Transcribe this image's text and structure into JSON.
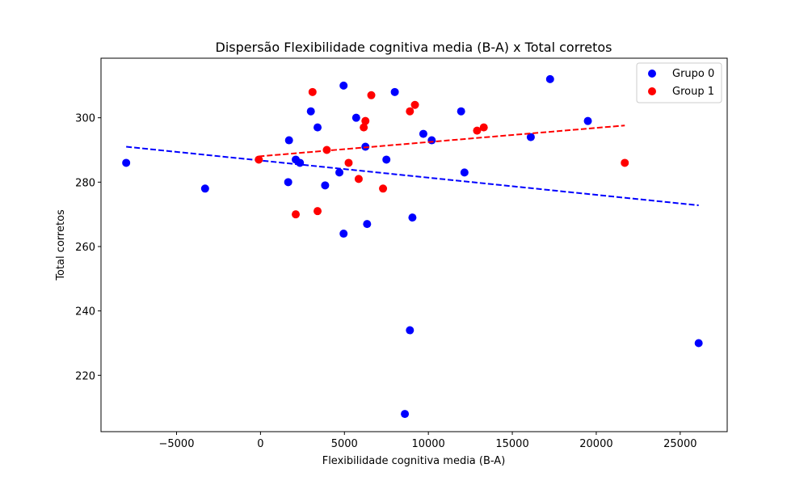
{
  "chart_data": {
    "type": "scatter",
    "title": "Dispersão Flexibilidade cognitiva media (B-A) x Total corretos",
    "xlabel": "Flexibilidade cognitiva media (B-A)",
    "ylabel": "Total corretos",
    "xlim": [
      -9500,
      27800
    ],
    "ylim": [
      202.5,
      318.5
    ],
    "xticks": [
      -5000,
      0,
      5000,
      10000,
      15000,
      20000,
      25000
    ],
    "xtick_labels": [
      "−5000",
      "0",
      "5000",
      "10000",
      "15000",
      "20000",
      "25000"
    ],
    "yticks": [
      220,
      240,
      260,
      280,
      300
    ],
    "ytick_labels": [
      "220",
      "240",
      "260",
      "280",
      "300"
    ],
    "grid": false,
    "legend_position": "top-right",
    "series": [
      {
        "name": "Grupo 0",
        "color": "#0000ff",
        "points": [
          [
            -8000,
            286
          ],
          [
            -3300,
            278
          ],
          [
            1700,
            293
          ],
          [
            1650,
            280
          ],
          [
            2100,
            287
          ],
          [
            2350,
            286
          ],
          [
            3000,
            302
          ],
          [
            3400,
            297
          ],
          [
            3850,
            279
          ],
          [
            4700,
            283
          ],
          [
            4950,
            310
          ],
          [
            4950,
            264
          ],
          [
            5700,
            300
          ],
          [
            6250,
            291
          ],
          [
            6350,
            267
          ],
          [
            7500,
            287
          ],
          [
            8000,
            308
          ],
          [
            8600,
            208
          ],
          [
            8900,
            234
          ],
          [
            9050,
            269
          ],
          [
            9700,
            295
          ],
          [
            10200,
            293
          ],
          [
            11950,
            302
          ],
          [
            12150,
            283
          ],
          [
            16100,
            294
          ],
          [
            17250,
            312
          ],
          [
            19500,
            299
          ],
          [
            26100,
            230
          ]
        ],
        "trend": {
          "x1": -8000,
          "y1": 291,
          "x2": 26100,
          "y2": 272.8
        }
      },
      {
        "name": "Group 1",
        "color": "#ff0000",
        "points": [
          [
            -100,
            287
          ],
          [
            2100,
            270
          ],
          [
            3100,
            308
          ],
          [
            3400,
            271
          ],
          [
            3950,
            290
          ],
          [
            5250,
            286
          ],
          [
            5850,
            281
          ],
          [
            6150,
            297
          ],
          [
            6250,
            299
          ],
          [
            6600,
            307
          ],
          [
            7300,
            278
          ],
          [
            8900,
            302
          ],
          [
            9200,
            304
          ],
          [
            12900,
            296
          ],
          [
            13300,
            297
          ],
          [
            21700,
            286
          ]
        ],
        "trend": {
          "x1": -100,
          "y1": 288,
          "x2": 21700,
          "y2": 297.6
        }
      }
    ]
  }
}
